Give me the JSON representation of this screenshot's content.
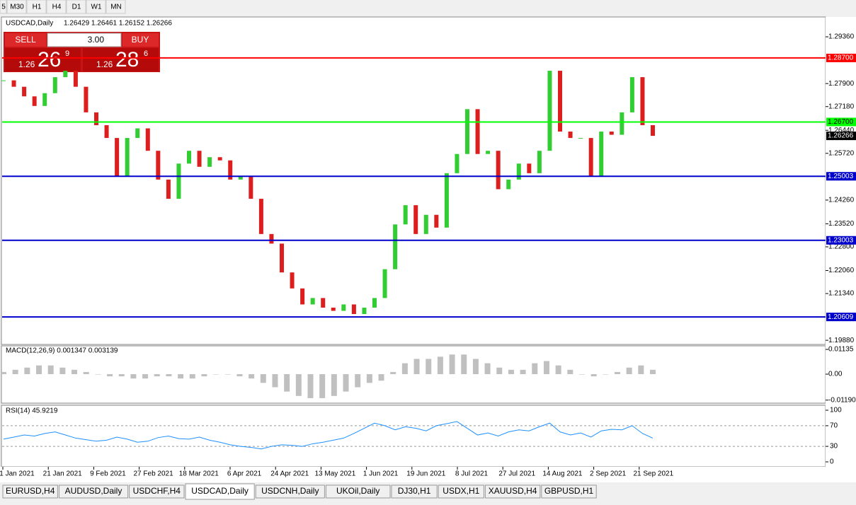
{
  "toolbar": {
    "timeframes": [
      "5",
      "M30",
      "H1",
      "H4",
      "D1",
      "W1",
      "MN"
    ]
  },
  "trade_panel": {
    "sell": "SELL",
    "buy": "BUY",
    "volume": "3.00",
    "sell_big": "1.26",
    "sell_pips": "26",
    "sell_frac": "9",
    "buy_big": "1.26",
    "buy_pips": "28",
    "buy_frac": "6"
  },
  "chart_data": {
    "type": "candlestick",
    "title": "USDCAD,Daily",
    "quote": "1.26429 1.26461 1.26152 1.26266",
    "closes": [
      1.28,
      1.278,
      1.275,
      1.272,
      1.276,
      1.281,
      1.283,
      1.278,
      1.27,
      1.266,
      1.262,
      1.25,
      1.262,
      1.265,
      1.258,
      1.249,
      1.243,
      1.254,
      1.258,
      1.253,
      1.256,
      1.255,
      1.249,
      1.25,
      1.243,
      1.232,
      1.229,
      1.22,
      1.215,
      1.21,
      1.212,
      1.209,
      1.208,
      1.21,
      1.207,
      1.209,
      1.212,
      1.221,
      1.235,
      1.241,
      1.232,
      1.238,
      1.234,
      1.251,
      1.257,
      1.271,
      1.257,
      1.258,
      1.246,
      1.249,
      1.254,
      1.251,
      1.258,
      1.283,
      1.264,
      1.262,
      1.262,
      1.25,
      1.264,
      1.263,
      1.27,
      1.281,
      1.266,
      1.26266
    ],
    "ylim": [
      1.1975,
      1.2998
    ],
    "yticks": [
      {
        "value": 1.2936,
        "label": "1.29360"
      },
      {
        "value": 1.279,
        "label": "1.27900"
      },
      {
        "value": 1.2718,
        "label": "1.27180"
      },
      {
        "value": 1.2644,
        "label": "1.26440"
      },
      {
        "value": 1.2572,
        "label": "1.25720"
      },
      {
        "value": 1.2426,
        "label": "1.24260"
      },
      {
        "value": 1.2352,
        "label": "1.23520"
      },
      {
        "value": 1.228,
        "label": "1.22800"
      },
      {
        "value": 1.2206,
        "label": "1.22060"
      },
      {
        "value": 1.2134,
        "label": "1.21340"
      },
      {
        "value": 1.1988,
        "label": "1.19880"
      }
    ],
    "levels": [
      {
        "value": 1.287,
        "label": "1.28700",
        "color": "#ff0000"
      },
      {
        "value": 1.267,
        "label": "1.26700",
        "color": "#00ff00"
      },
      {
        "value": 1.25003,
        "label": "1.25003",
        "color": "#0000cc"
      },
      {
        "value": 1.23003,
        "label": "1.23003",
        "color": "#0000cc"
      },
      {
        "value": 1.20609,
        "label": "1.20609",
        "color": "#0000cc"
      }
    ],
    "current": {
      "value": 1.26266,
      "label": "1.26266"
    },
    "x_labels": [
      "1 Jan 2021",
      "21 Jan 2021",
      "9 Feb 2021",
      "27 Feb 2021",
      "18 Mar 2021",
      "6 Apr 2021",
      "24 Apr 2021",
      "13 May 2021",
      "1 Jun 2021",
      "19 Jun 2021",
      "8 Jul 2021",
      "27 Jul 2021",
      "14 Aug 2021",
      "2 Sep 2021",
      "21 Sep 2021"
    ],
    "up_color": "#32cd32",
    "down_color": "#dc1e1e"
  },
  "macd": {
    "title": "MACD(12,26,9) 0.001347 0.003139",
    "values": [
      0.001,
      0.002,
      0.003,
      0.004,
      0.004,
      0.003,
      0.002,
      0.001,
      0.0,
      -0.001,
      -0.001,
      -0.002,
      -0.002,
      -0.001,
      -0.001,
      -0.002,
      -0.002,
      -0.001,
      0.0,
      0.0,
      -0.001,
      -0.002,
      -0.004,
      -0.006,
      -0.008,
      -0.01,
      -0.011,
      -0.011,
      -0.01,
      -0.008,
      -0.006,
      -0.004,
      -0.003,
      0.001,
      0.005,
      0.007,
      0.007,
      0.008,
      0.009,
      0.009,
      0.007,
      0.005,
      0.003,
      0.002,
      0.002,
      0.005,
      0.006,
      0.004,
      0.002,
      0.0,
      -0.001,
      0.0,
      0.001,
      0.003,
      0.004,
      0.002
    ],
    "ylim": [
      -0.0133,
      0.01297
    ],
    "yticks": [
      {
        "value": 0.01135,
        "label": "0.01135"
      },
      {
        "value": 0,
        "label": "0.00"
      },
      {
        "value": -0.011904,
        "label": "-0.011904"
      }
    ]
  },
  "rsi": {
    "title": "RSI(14) 45.9219",
    "values": [
      44,
      48,
      52,
      50,
      55,
      58,
      52,
      46,
      43,
      40,
      42,
      48,
      44,
      38,
      40,
      47,
      50,
      45,
      44,
      48,
      42,
      38,
      33,
      30,
      28,
      25,
      30,
      33,
      32,
      30,
      35,
      38,
      42,
      46,
      55,
      65,
      75,
      70,
      62,
      68,
      65,
      60,
      70,
      74,
      78,
      65,
      52,
      56,
      50,
      58,
      62,
      60,
      68,
      75,
      58,
      52,
      56,
      48,
      60,
      63,
      62,
      70,
      55,
      45.9219
    ],
    "ylim": [
      -9.6,
      109.6
    ],
    "yticks": [
      100,
      70,
      30,
      0
    ],
    "grid": [
      70,
      30
    ]
  },
  "tabs": [
    "EURUSD,H4",
    "AUDUSD,Daily",
    "USDCHF,H4",
    "USDCAD,Daily",
    "USDCNH,Daily",
    "UKOil,Daily",
    "DJ30,H1",
    "USDX,H1",
    "XAUUSD,H4",
    "GBPUSD,H1"
  ],
  "active_tab": "USDCAD,Daily"
}
